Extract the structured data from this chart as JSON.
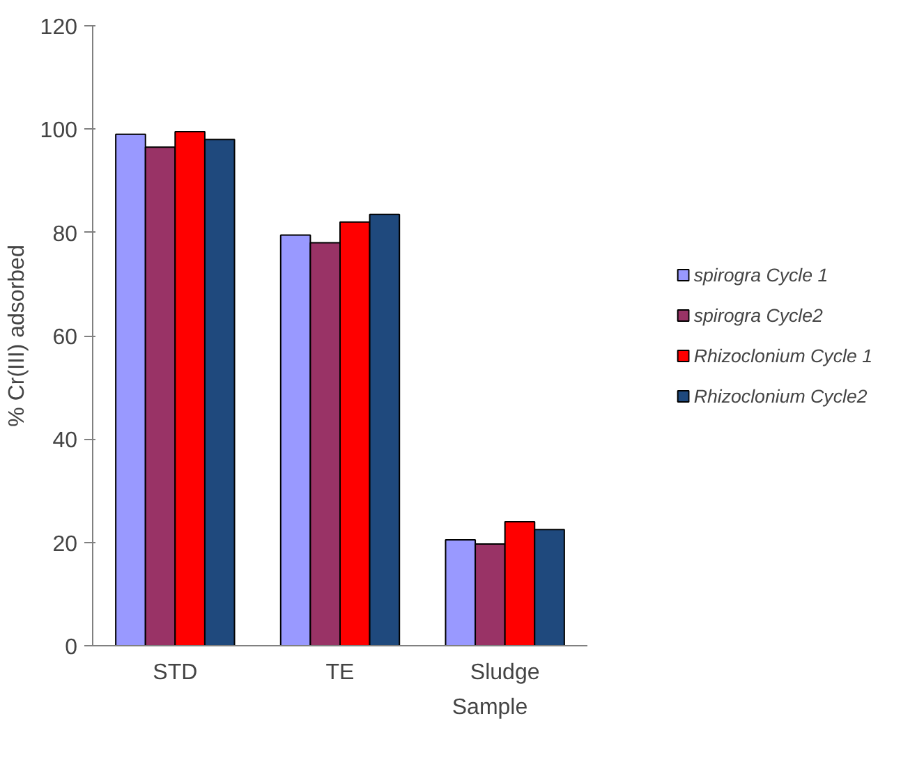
{
  "chart_data": {
    "type": "bar",
    "xlabel": "Sample",
    "ylabel": "% Cr(III) adsorbed",
    "categories": [
      "STD",
      "TE",
      "Sludge"
    ],
    "series": [
      {
        "name": "spirogra Cycle 1",
        "color": "#9999ff",
        "values": [
          99,
          79.5,
          20.5
        ]
      },
      {
        "name": "spirogra Cycle2",
        "color": "#993366",
        "values": [
          96.5,
          78,
          19.7
        ]
      },
      {
        "name": "Rhizoclonium Cycle 1",
        "color": "#ff0000",
        "values": [
          99.5,
          82,
          24
        ]
      },
      {
        "name": "Rhizoclonium Cycle2",
        "color": "#1f497d",
        "values": [
          98,
          83.5,
          22.5
        ]
      }
    ],
    "ylim": [
      0,
      120
    ],
    "yticks": [
      0,
      20,
      40,
      60,
      80,
      100,
      120
    ],
    "grid": false,
    "legend": "right"
  }
}
